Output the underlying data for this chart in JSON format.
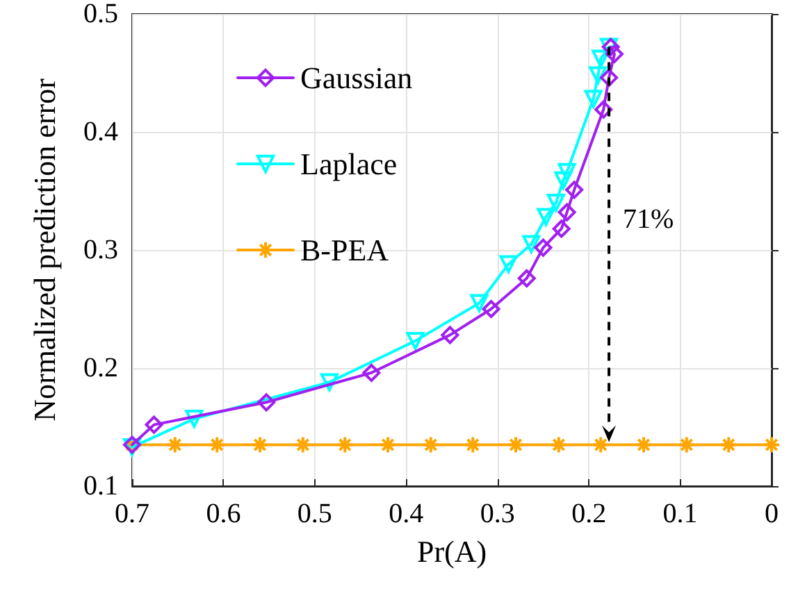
{
  "chart_data": {
    "type": "line",
    "xlabel": "Pr(A)",
    "ylabel": "Normalized prediction error",
    "xlim": [
      0.7,
      0
    ],
    "xticks": [
      0.7,
      0.6,
      0.5,
      0.4,
      0.3,
      0.2,
      0.1,
      0
    ],
    "ylim": [
      0.1,
      0.5
    ],
    "yticks": [
      0.1,
      0.2,
      0.3,
      0.4,
      0.5
    ],
    "grid": true,
    "legend": "top left",
    "line_style": "solid",
    "annotations": [
      "71%"
    ],
    "series": [
      {
        "name": "Gaussian",
        "color": "#a020f0",
        "marker": "diamond",
        "x": [
          0.7,
          0.676,
          0.553,
          0.438,
          0.352,
          0.307,
          0.268,
          0.25,
          0.23,
          0.224,
          0.216,
          0.184,
          0.178,
          0.172,
          0.176
        ],
        "values": [
          0.135,
          0.152,
          0.171,
          0.196,
          0.228,
          0.25,
          0.276,
          0.302,
          0.318,
          0.332,
          0.351,
          0.419,
          0.446,
          0.466,
          0.472
        ]
      },
      {
        "name": "Laplace",
        "color": "#00ffff",
        "marker": "triangle",
        "x": [
          0.7,
          0.632,
          0.484,
          0.39,
          0.32,
          0.288,
          0.263,
          0.247,
          0.236,
          0.228,
          0.224,
          0.195,
          0.19,
          0.187,
          0.178
        ],
        "values": [
          0.133,
          0.157,
          0.188,
          0.223,
          0.255,
          0.288,
          0.305,
          0.328,
          0.34,
          0.359,
          0.366,
          0.428,
          0.448,
          0.462,
          0.472
        ]
      },
      {
        "name": "B-PEA",
        "color": "#ffa500",
        "marker": "cross",
        "x": [
          0.7,
          0.653,
          0.607,
          0.56,
          0.513,
          0.467,
          0.42,
          0.373,
          0.327,
          0.28,
          0.233,
          0.187,
          0.14,
          0.093,
          0.047,
          0
        ],
        "values": [
          0.135,
          0.135,
          0.135,
          0.135,
          0.135,
          0.135,
          0.135,
          0.135,
          0.135,
          0.135,
          0.135,
          0.135,
          0.135,
          0.135,
          0.135,
          0.135
        ]
      }
    ]
  }
}
